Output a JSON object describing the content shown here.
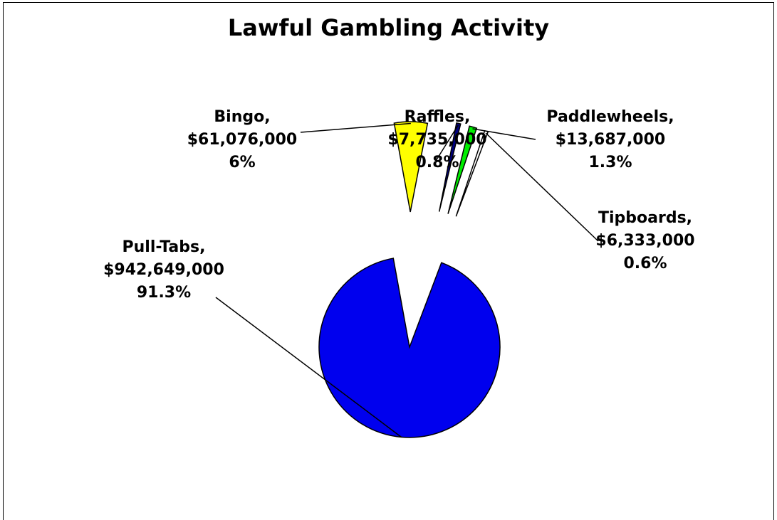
{
  "chart_data": {
    "type": "pie",
    "title": "Lawful Gambling Activity",
    "slices": [
      {
        "name": "Pull-Tabs",
        "value_label": "$942,649,000",
        "value": 942649000,
        "percent_label": "91.3%",
        "percent": 91.3,
        "color": "#0000ee"
      },
      {
        "name": "Bingo",
        "value_label": "$61,076,000",
        "value": 61076000,
        "percent_label": "6%",
        "percent": 6,
        "color": "#ffff00"
      },
      {
        "name": "Raffles",
        "value_label": "$7,735,000",
        "value": 7735000,
        "percent_label": "0.8%",
        "percent": 0.8,
        "color": "#000080"
      },
      {
        "name": "Paddlewheels",
        "value_label": "$13,687,000",
        "value": 13687000,
        "percent_label": "1.3%",
        "percent": 1.3,
        "color": "#00ee00"
      },
      {
        "name": "Tipboards",
        "value_label": "$6,333,000",
        "value": 6333000,
        "percent_label": "0.6%",
        "percent": 0.6,
        "color": "#ffffff"
      }
    ],
    "slice_suffix": ","
  }
}
